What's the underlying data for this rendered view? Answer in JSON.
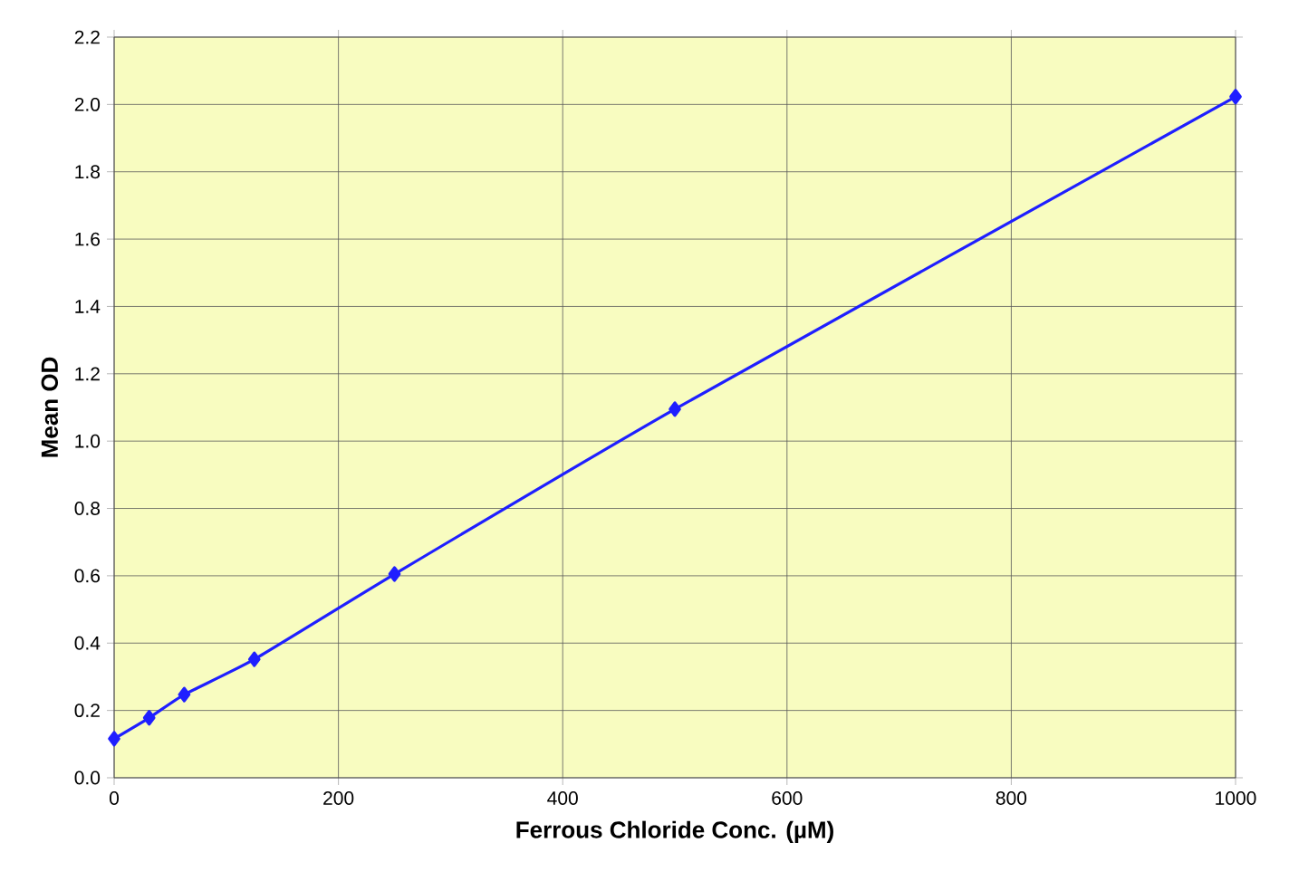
{
  "chart_data": {
    "type": "line",
    "xlabel": "Ferrous Chloride Conc. (µM)",
    "ylabel": "Mean OD",
    "x": [
      0,
      31.25,
      62.5,
      125,
      250,
      500,
      1000
    ],
    "values": [
      0.116,
      0.178,
      0.247,
      0.352,
      0.605,
      1.095,
      2.023
    ],
    "color": "#1f1fff",
    "marker": "diamond",
    "line_style": "solid",
    "grid": true,
    "xlim": [
      0,
      1000
    ],
    "xticks": [
      0,
      200,
      400,
      600,
      800,
      1000
    ],
    "ylim": [
      0,
      2.2
    ],
    "yticks": [
      {
        "value": 0,
        "label": "0.0"
      },
      {
        "value": 0.2,
        "label": "0.2"
      },
      {
        "value": 0.4,
        "label": "0.4"
      },
      {
        "value": 0.6,
        "label": "0.6"
      },
      {
        "value": 0.8,
        "label": "0.8"
      },
      {
        "value": 1.0,
        "label": "1.0"
      },
      {
        "value": 1.2,
        "label": "1.2"
      },
      {
        "value": 1.4,
        "label": "1.4"
      },
      {
        "value": 1.6,
        "label": "1.6"
      },
      {
        "value": 1.8,
        "label": "1.8"
      },
      {
        "value": 2.0,
        "label": "2.0"
      },
      {
        "value": 2.2,
        "label": "2.2"
      }
    ]
  }
}
